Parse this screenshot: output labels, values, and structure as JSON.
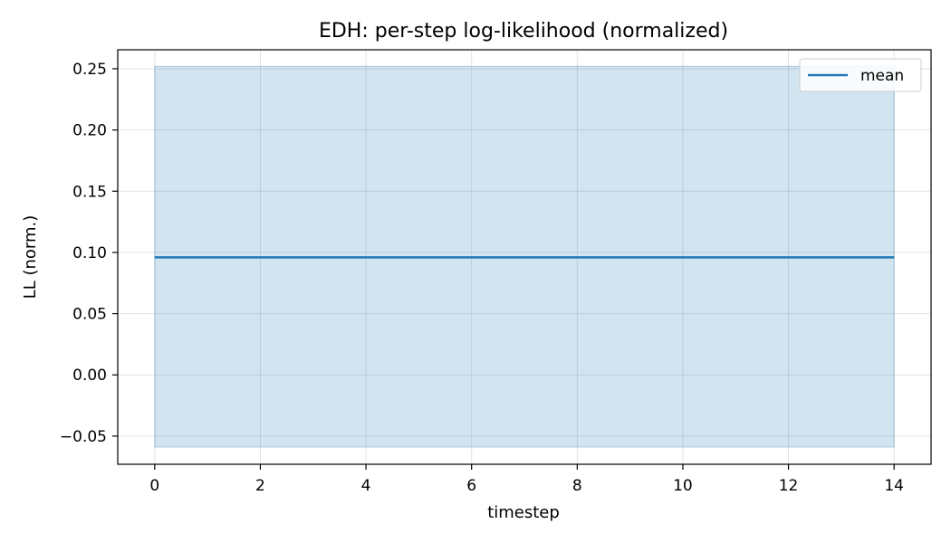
{
  "chart_data": {
    "type": "line",
    "title": "EDH: per-step log-likelihood (normalized)",
    "xlabel": "timestep",
    "ylabel": "LL (norm.)",
    "xlim": [
      -0.7,
      14.7
    ],
    "ylim": [
      -0.073,
      0.2655
    ],
    "xticks": [
      0,
      2,
      4,
      6,
      8,
      10,
      12,
      14
    ],
    "yticks": [
      -0.05,
      0.0,
      0.05,
      0.1,
      0.15,
      0.2,
      0.25
    ],
    "ytick_labels": [
      "−0.05",
      "0.00",
      "0.05",
      "0.10",
      "0.15",
      "0.20",
      "0.25"
    ],
    "grid": true,
    "legend": {
      "position": "top-right",
      "entries": [
        "mean"
      ]
    },
    "series": [
      {
        "name": "mean",
        "color": "#1f77b4",
        "x": [
          0,
          14
        ],
        "y": [
          0.096,
          0.096
        ],
        "band": {
          "lower": -0.059,
          "upper": 0.252,
          "color": "#1f77b4",
          "opacity": 0.2
        }
      }
    ]
  }
}
